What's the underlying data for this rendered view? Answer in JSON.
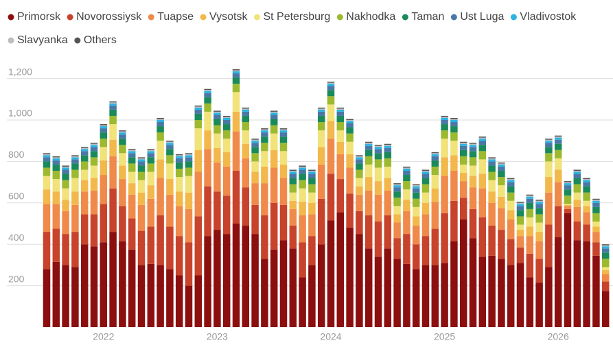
{
  "chart_data": {
    "type": "bar",
    "stacked": true,
    "categories": [
      null,
      null,
      null,
      null,
      null,
      null,
      null,
      null,
      null,
      null,
      null,
      null,
      null,
      null,
      null,
      null,
      null,
      null,
      null,
      null,
      null,
      null,
      null,
      null,
      null,
      null,
      null,
      null,
      null,
      null,
      null,
      null,
      null,
      null,
      null,
      null,
      null,
      null,
      null,
      null,
      null,
      null,
      null,
      null,
      null,
      null,
      null,
      null,
      null,
      null,
      null,
      null,
      null,
      null,
      null,
      null,
      null,
      null,
      null,
      null
    ],
    "xticks": [
      {
        "value": 6,
        "label": "2022"
      },
      {
        "value": 18,
        "label": "2023"
      },
      {
        "value": 30,
        "label": "2024"
      },
      {
        "value": 42,
        "label": "2025"
      },
      {
        "value": 54,
        "label": "2026"
      }
    ],
    "ylim": [
      0,
      1250
    ],
    "yticks": [
      200,
      400,
      600,
      800,
      {
        "value": 1000,
        "label": "1,000"
      },
      {
        "value": 1200,
        "label": "1,200"
      }
    ],
    "grid": true,
    "series": [
      {
        "name": "Primorsk",
        "color": "#8c0f0f",
        "values": [
          280,
          315,
          300,
          290,
          400,
          390,
          410,
          460,
          415,
          375,
          300,
          305,
          300,
          280,
          250,
          200,
          250,
          440,
          470,
          450,
          500,
          490,
          450,
          330,
          375,
          420,
          380,
          240,
          300,
          400,
          515,
          555,
          480,
          450,
          380,
          340,
          380,
          330,
          305,
          280,
          300,
          300,
          310,
          415,
          520,
          430,
          340,
          345,
          330,
          300,
          310,
          240,
          215,
          290,
          435,
          550,
          420,
          415,
          345,
          175
        ]
      },
      {
        "name": "Novorossiysk",
        "color": "#c8432b",
        "values": [
          180,
          160,
          150,
          170,
          145,
          155,
          185,
          210,
          170,
          150,
          165,
          180,
          240,
          205,
          190,
          210,
          285,
          240,
          185,
          185,
          255,
          185,
          140,
          210,
          225,
          170,
          110,
          170,
          140,
          220,
          225,
          160,
          165,
          110,
          160,
          170,
          160,
          100,
          145,
          120,
          140,
          175,
          240,
          195,
          105,
          140,
          190,
          145,
          140,
          125,
          75,
          115,
          115,
          205,
          150,
          20,
          90,
          80,
          65,
          45
        ]
      },
      {
        "name": "Tuapse",
        "color": "#ef8a4b",
        "values": [
          135,
          120,
          110,
          130,
          110,
          115,
          140,
          155,
          130,
          115,
          125,
          135,
          180,
          155,
          145,
          160,
          215,
          180,
          140,
          140,
          190,
          140,
          105,
          155,
          170,
          130,
          80,
          130,
          105,
          165,
          170,
          120,
          125,
          80,
          120,
          130,
          120,
          75,
          110,
          90,
          105,
          130,
          180,
          145,
          80,
          105,
          140,
          110,
          105,
          95,
          55,
          85,
          85,
          155,
          115,
          15,
          70,
          60,
          50,
          35
        ]
      },
      {
        "name": "Vysotsk",
        "color": "#f3b84b",
        "values": [
          70,
          60,
          55,
          65,
          55,
          60,
          70,
          80,
          65,
          55,
          60,
          65,
          90,
          75,
          70,
          80,
          105,
          90,
          70,
          70,
          95,
          70,
          55,
          80,
          85,
          65,
          40,
          65,
          55,
          85,
          85,
          60,
          65,
          40,
          65,
          65,
          60,
          40,
          55,
          45,
          55,
          65,
          90,
          75,
          40,
          55,
          70,
          55,
          55,
          45,
          30,
          45,
          45,
          75,
          60,
          5,
          35,
          30,
          25,
          20
        ]
      },
      {
        "name": "St Petersburg",
        "color": "#f1e27a",
        "values": [
          65,
          60,
          55,
          65,
          50,
          60,
          65,
          75,
          60,
          55,
          60,
          65,
          90,
          75,
          70,
          80,
          105,
          90,
          70,
          65,
          95,
          65,
          50,
          75,
          80,
          65,
          40,
          65,
          50,
          80,
          80,
          55,
          60,
          40,
          60,
          65,
          55,
          40,
          50,
          45,
          50,
          65,
          90,
          70,
          40,
          50,
          70,
          55,
          55,
          45,
          25,
          45,
          45,
          75,
          55,
          5,
          35,
          25,
          25,
          15
        ]
      },
      {
        "name": "Nakhodka",
        "color": "#9cb92f",
        "values": [
          40,
          40,
          40,
          40,
          40,
          40,
          40,
          40,
          40,
          40,
          40,
          40,
          40,
          40,
          40,
          40,
          40,
          40,
          40,
          40,
          40,
          40,
          40,
          40,
          40,
          40,
          40,
          40,
          40,
          40,
          40,
          40,
          40,
          40,
          40,
          40,
          40,
          40,
          40,
          40,
          40,
          40,
          40,
          40,
          40,
          40,
          40,
          40,
          40,
          40,
          40,
          40,
          40,
          40,
          40,
          40,
          40,
          40,
          40,
          40
        ]
      },
      {
        "name": "Taman",
        "color": "#1a8a5a",
        "values": [
          30,
          30,
          30,
          30,
          30,
          30,
          30,
          30,
          30,
          30,
          30,
          30,
          30,
          30,
          30,
          30,
          30,
          30,
          30,
          30,
          30,
          30,
          30,
          30,
          30,
          30,
          30,
          30,
          30,
          30,
          30,
          30,
          30,
          30,
          30,
          30,
          30,
          30,
          30,
          30,
          30,
          30,
          30,
          30,
          30,
          30,
          30,
          30,
          30,
          30,
          30,
          30,
          30,
          30,
          30,
          30,
          30,
          30,
          30,
          30
        ]
      },
      {
        "name": "Ust Luga",
        "color": "#4a78a6",
        "values": [
          20,
          20,
          20,
          20,
          20,
          20,
          20,
          20,
          20,
          20,
          20,
          20,
          20,
          20,
          20,
          20,
          20,
          20,
          20,
          20,
          20,
          20,
          20,
          20,
          20,
          20,
          20,
          20,
          20,
          20,
          20,
          20,
          20,
          20,
          20,
          20,
          20,
          20,
          20,
          20,
          20,
          20,
          20,
          20,
          20,
          20,
          20,
          20,
          20,
          20,
          20,
          20,
          20,
          20,
          20,
          20,
          20,
          20,
          20,
          20
        ]
      },
      {
        "name": "Vladivostok",
        "color": "#2bb3e2",
        "values": [
          10,
          10,
          10,
          10,
          10,
          10,
          10,
          10,
          10,
          10,
          10,
          10,
          10,
          10,
          10,
          10,
          10,
          10,
          10,
          10,
          10,
          10,
          10,
          10,
          10,
          10,
          10,
          10,
          10,
          10,
          10,
          10,
          10,
          10,
          10,
          10,
          10,
          10,
          10,
          10,
          10,
          10,
          10,
          10,
          10,
          10,
          10,
          10,
          10,
          10,
          10,
          10,
          10,
          10,
          10,
          10,
          10,
          10,
          10,
          10
        ]
      },
      {
        "name": "Slavyanka",
        "color": "#bdbdbd",
        "values": [
          5,
          5,
          5,
          5,
          5,
          5,
          5,
          5,
          5,
          5,
          5,
          5,
          5,
          5,
          5,
          5,
          5,
          5,
          5,
          5,
          5,
          5,
          5,
          5,
          5,
          5,
          5,
          5,
          5,
          5,
          5,
          5,
          5,
          5,
          5,
          5,
          5,
          5,
          5,
          5,
          5,
          5,
          5,
          5,
          5,
          5,
          5,
          5,
          5,
          5,
          5,
          5,
          5,
          5,
          5,
          5,
          5,
          5,
          5,
          5
        ]
      },
      {
        "name": "Others",
        "color": "#555555",
        "values": [
          5,
          5,
          5,
          5,
          5,
          5,
          5,
          5,
          5,
          5,
          5,
          5,
          5,
          5,
          5,
          5,
          5,
          5,
          5,
          5,
          5,
          5,
          5,
          5,
          5,
          5,
          5,
          5,
          5,
          5,
          5,
          5,
          5,
          5,
          5,
          5,
          5,
          5,
          5,
          5,
          5,
          5,
          5,
          5,
          5,
          5,
          5,
          5,
          5,
          5,
          5,
          5,
          5,
          5,
          5,
          5,
          5,
          5,
          5,
          5
        ]
      }
    ]
  }
}
